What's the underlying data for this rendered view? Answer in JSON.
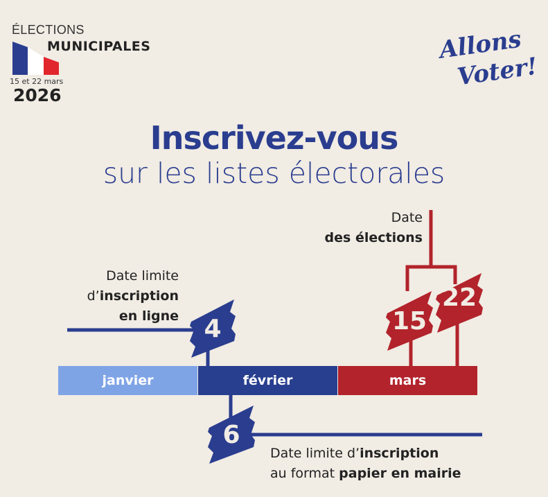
{
  "header": {
    "elections": "ÉLECTIONS",
    "municipales": "MUNICIPALES",
    "dates": "15 et 22 mars",
    "year": "2026"
  },
  "logo": {
    "line1": "Allons",
    "line2": "Voter!"
  },
  "title": {
    "main": "Inscrivez-vous",
    "sub": "sur les listes électorales"
  },
  "timeline": {
    "months": [
      {
        "label": "janvier",
        "color": "#7fa4e6"
      },
      {
        "label": "février",
        "color": "#283f8f"
      },
      {
        "label": "mars",
        "color": "#b2232b"
      }
    ],
    "online": {
      "day": "4",
      "line1": "Date limite",
      "line2_pre": "d’",
      "line2_bold": "inscription",
      "line3": "en ligne"
    },
    "paper": {
      "day": "6",
      "line1_pre": "Date limite d’",
      "line1_bold": "inscription",
      "line2_pre": "au format ",
      "line2_bold": "papier en mairie"
    },
    "elections": {
      "days": [
        "15",
        "22"
      ],
      "line1": "Date",
      "line2": "des élections"
    }
  },
  "colors": {
    "blue": "#2a3d8f",
    "red": "#b2232b",
    "bg": "#f1ece4"
  }
}
